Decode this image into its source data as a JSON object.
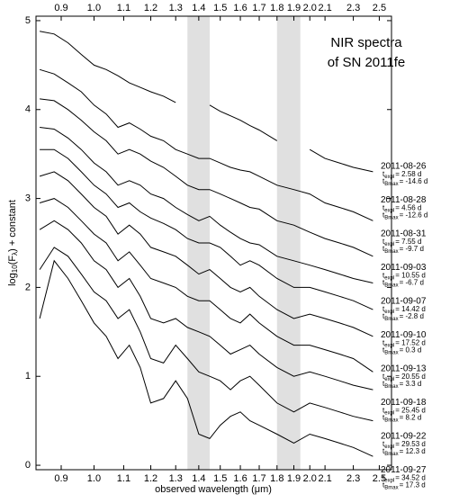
{
  "chart_data": {
    "type": "line",
    "title_lines": [
      "NIR spectra",
      "of SN 2011fe"
    ],
    "xlabel": "observed wavelength (μm)",
    "ylabel_parts": [
      "log",
      "10",
      "(F",
      "λ",
      ") + constant"
    ],
    "t_symbol": "t",
    "expl_sub": "expl",
    "bmax_sub": "Bmax",
    "xscale": "log",
    "xlim": [
      0.83,
      2.6
    ],
    "ylim": [
      -0.05,
      5.05
    ],
    "xticks": [
      0.9,
      {
        "value": 1,
        "label": "1.0"
      },
      1.1,
      1.2,
      1.3,
      1.4,
      1.5,
      1.6,
      1.7,
      1.8,
      1.9,
      {
        "value": 2,
        "label": "2.0"
      },
      2.1,
      2.3,
      2.5
    ],
    "yticks": [
      0,
      1,
      2,
      3,
      4,
      5
    ],
    "shaded_bands": [
      [
        1.35,
        1.45
      ],
      [
        1.8,
        1.94
      ]
    ],
    "band_color": "#e0e0e0",
    "x": [
      0.84,
      0.88,
      0.92,
      0.96,
      1.0,
      1.04,
      1.08,
      1.12,
      1.16,
      1.2,
      1.25,
      1.3,
      1.35,
      1.4,
      1.45,
      1.5,
      1.55,
      1.6,
      1.65,
      1.7,
      1.8,
      1.9,
      2.0,
      2.1,
      2.2,
      2.3,
      2.45
    ],
    "series": [
      {
        "name": "2011-08-26",
        "expl": "= 2.58 d",
        "bmax": "= -14.6 d",
        "color": "#000000",
        "values": [
          4.88,
          4.85,
          4.75,
          4.62,
          4.5,
          4.45,
          4.38,
          4.3,
          4.25,
          4.2,
          4.15,
          4.08,
          null,
          null,
          4.05,
          3.98,
          3.93,
          3.88,
          3.82,
          3.77,
          3.65,
          null,
          3.55,
          3.45,
          3.4,
          3.35,
          3.3
        ]
      },
      {
        "name": "2011-08-28",
        "expl": "= 4.56 d",
        "bmax": "= -12.6 d",
        "color": "#000000",
        "values": [
          4.45,
          4.4,
          4.3,
          4.2,
          4.05,
          3.95,
          3.8,
          3.85,
          3.78,
          3.7,
          3.65,
          3.55,
          3.5,
          3.45,
          3.45,
          3.4,
          3.35,
          3.32,
          3.3,
          3.25,
          3.15,
          3.1,
          3.05,
          2.95,
          2.9,
          2.85,
          2.75
        ]
      },
      {
        "name": "2011-08-31",
        "expl": "= 7.55 d",
        "bmax": "= -9.7 d",
        "color": "#000000",
        "values": [
          4.12,
          4.1,
          4.0,
          3.88,
          3.75,
          3.65,
          3.5,
          3.55,
          3.5,
          3.42,
          3.35,
          3.25,
          3.15,
          3.1,
          3.1,
          3.05,
          3.0,
          2.95,
          2.9,
          2.88,
          2.75,
          2.7,
          2.62,
          2.55,
          2.5,
          2.45,
          2.35
        ]
      },
      {
        "name": "2011-09-03",
        "expl": "= 10.55 d",
        "bmax": "= -6.7 d",
        "color": "#000000",
        "values": [
          3.8,
          3.78,
          3.68,
          3.55,
          3.4,
          3.3,
          3.15,
          3.2,
          3.15,
          3.05,
          3.0,
          2.9,
          2.82,
          2.75,
          2.8,
          2.7,
          2.62,
          2.55,
          2.5,
          2.48,
          2.35,
          2.3,
          2.25,
          2.2,
          2.15,
          2.1,
          2.05
        ]
      },
      {
        "name": "2011-09-07",
        "expl": "= 14.42 d",
        "bmax": "= -2.8 d",
        "color": "#000000",
        "values": [
          3.55,
          3.55,
          3.45,
          3.3,
          3.15,
          3.05,
          2.9,
          2.95,
          2.85,
          2.78,
          2.72,
          2.65,
          2.55,
          2.5,
          2.5,
          2.45,
          2.35,
          2.25,
          2.3,
          2.25,
          2.1,
          2.0,
          2.0,
          1.95,
          1.9,
          1.85,
          1.75
        ]
      },
      {
        "name": "2011-09-10",
        "expl": "= 17.52 d",
        "bmax": "= 0.3 d",
        "color": "#000000",
        "values": [
          3.25,
          3.3,
          3.2,
          3.05,
          2.9,
          2.8,
          2.6,
          2.7,
          2.6,
          2.45,
          2.4,
          2.35,
          2.25,
          2.15,
          2.2,
          2.1,
          2.0,
          1.95,
          2.0,
          1.9,
          1.75,
          1.65,
          1.7,
          1.65,
          1.6,
          1.55,
          1.45
        ]
      },
      {
        "name": "2011-09-13",
        "expl": "= 20.55 d",
        "bmax": "= 3.3 d",
        "color": "#000000",
        "values": [
          2.95,
          3.0,
          2.9,
          2.75,
          2.6,
          2.5,
          2.3,
          2.4,
          2.25,
          2.1,
          2.05,
          2.0,
          1.9,
          1.85,
          1.85,
          1.75,
          1.65,
          1.6,
          1.7,
          1.6,
          1.45,
          1.35,
          1.35,
          1.3,
          1.25,
          1.2,
          1.05
        ]
      },
      {
        "name": "2011-09-18",
        "expl": "= 25.45 d",
        "bmax": "= 8.2 d",
        "color": "#000000",
        "values": [
          2.65,
          2.75,
          2.65,
          2.5,
          2.3,
          2.2,
          2.0,
          2.1,
          1.9,
          1.65,
          1.6,
          1.65,
          1.55,
          1.5,
          1.45,
          1.35,
          1.25,
          1.3,
          1.35,
          1.25,
          1.1,
          1.0,
          1.05,
          1.0,
          0.95,
          0.9,
          0.85
        ]
      },
      {
        "name": "2011-09-22",
        "expl": "= 29.53 d",
        "bmax": "= 12.3 d",
        "color": "#000000",
        "values": [
          2.2,
          2.45,
          2.35,
          2.15,
          1.95,
          1.85,
          1.65,
          1.75,
          1.5,
          1.2,
          1.15,
          1.35,
          1.2,
          1.05,
          1.0,
          0.95,
          0.85,
          0.95,
          1.0,
          0.9,
          0.7,
          0.6,
          0.7,
          0.65,
          0.6,
          0.55,
          0.5
        ]
      },
      {
        "name": "2011-09-27",
        "expl": "= 34.52 d",
        "bmax": "= 17.3 d",
        "color": "#000000",
        "values": [
          1.65,
          2.3,
          2.1,
          1.85,
          1.6,
          1.45,
          1.2,
          1.35,
          1.1,
          0.7,
          0.75,
          0.95,
          0.75,
          0.35,
          0.3,
          0.45,
          0.55,
          0.6,
          0.5,
          0.45,
          0.35,
          0.25,
          0.35,
          0.3,
          0.25,
          0.2,
          0.1
        ]
      }
    ]
  }
}
